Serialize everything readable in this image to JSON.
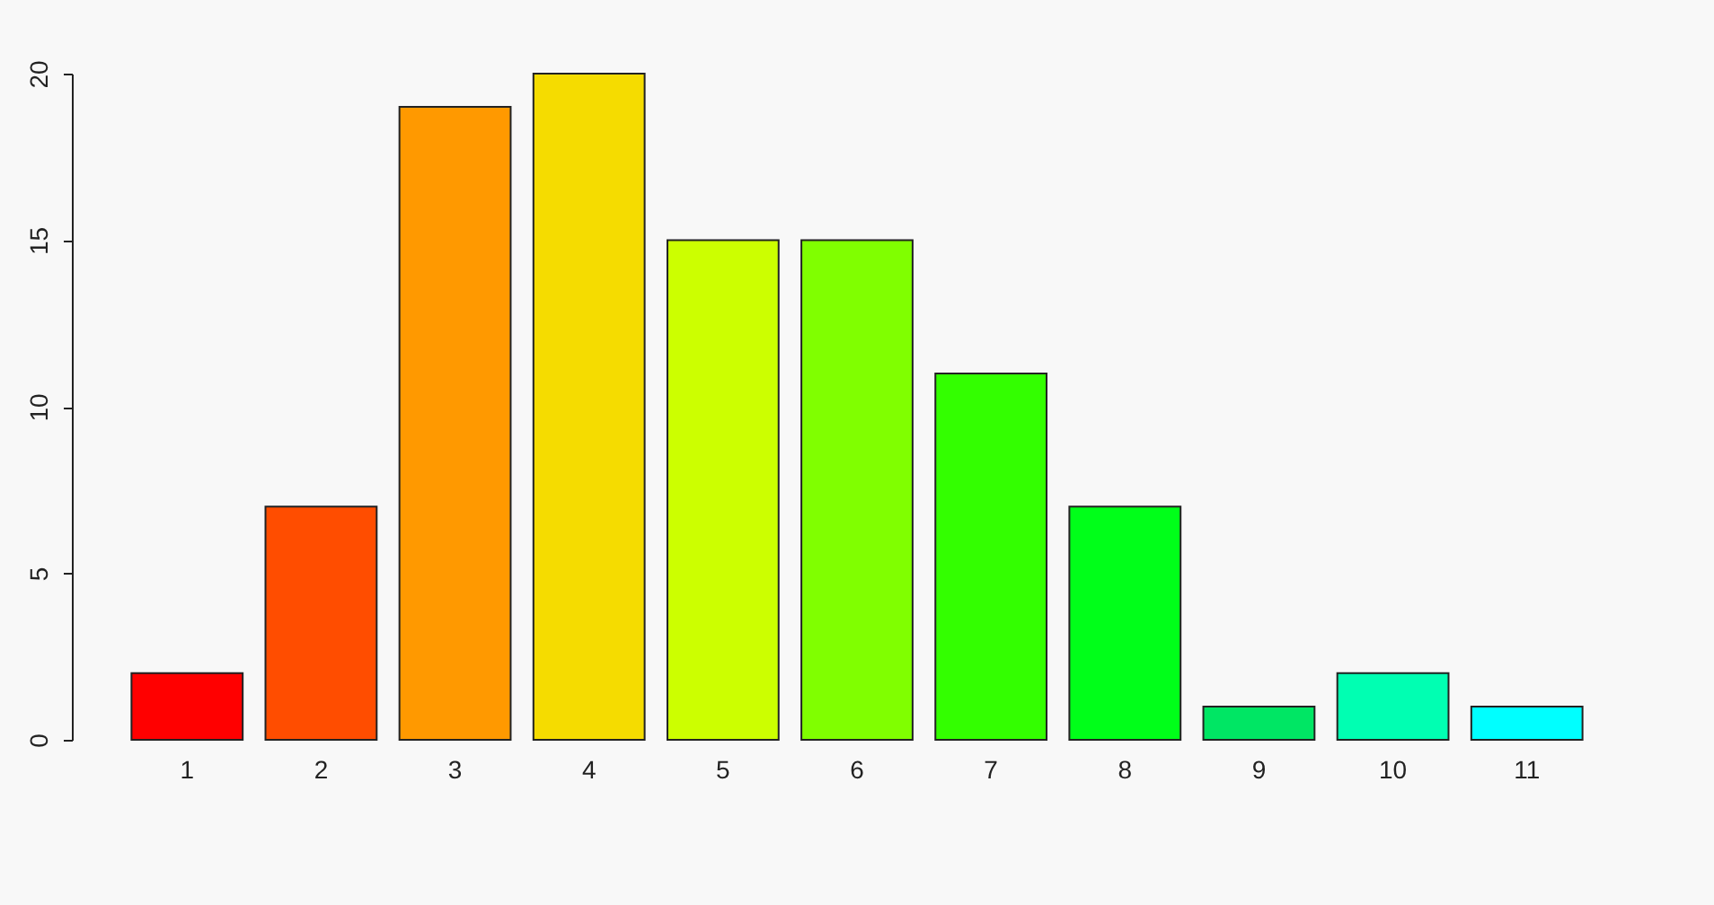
{
  "chart_data": {
    "type": "bar",
    "categories": [
      "1",
      "2",
      "3",
      "4",
      "5",
      "6",
      "7",
      "8",
      "9",
      "10",
      "11"
    ],
    "values": [
      2,
      7,
      19,
      20,
      15,
      15,
      11,
      7,
      1,
      2,
      1
    ],
    "colors": [
      "#ff0000",
      "#ff4d00",
      "#ff9900",
      "#f5dc00",
      "#ccff00",
      "#80ff00",
      "#33ff00",
      "#00ff19",
      "#00e664",
      "#00ffb2",
      "#00ffff"
    ],
    "ylim": [
      0,
      20
    ],
    "yticks": [
      0,
      5,
      10,
      15,
      20
    ],
    "grid": false,
    "legend": false
  }
}
